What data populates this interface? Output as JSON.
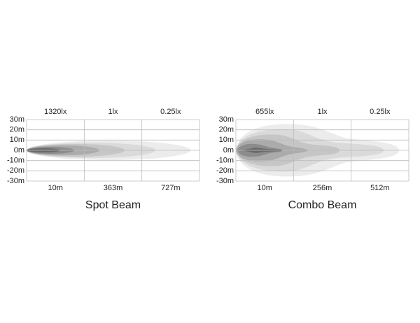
{
  "panels": [
    {
      "title": "Spot Beam",
      "top_labels": [
        "1320lx",
        "1lx",
        "0.25lx"
      ],
      "bottom_labels": [
        "10m",
        "363m",
        "727m"
      ],
      "y_labels": [
        "30m",
        "20m",
        "10m",
        "0m",
        "-10m",
        "-20m",
        "-30m"
      ]
    },
    {
      "title": "Combo Beam",
      "top_labels": [
        "655lx",
        "1lx",
        "0.25lx"
      ],
      "bottom_labels": [
        "10m",
        "256m",
        "512m"
      ],
      "y_labels": [
        "30m",
        "20m",
        "10m",
        "0m",
        "-10m",
        "-20m",
        "-30m"
      ]
    }
  ]
}
